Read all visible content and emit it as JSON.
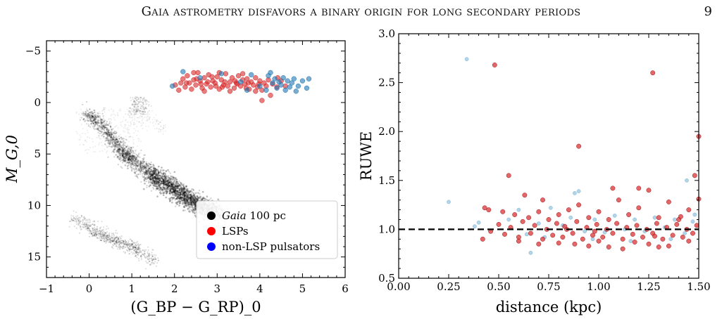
{
  "header": {
    "running_title": "Gaia astrometry disfavors a binary origin for long secondary periods",
    "page_number": "9"
  },
  "colors": {
    "gaia": "#000000",
    "lsp": "#d62728",
    "lsp_fill": "#e8474b",
    "pulsator": "#1f77b4",
    "pulsator_light": "#9ecae1",
    "legend_pulsator": "#0000ff",
    "legend_lsp": "#ff0000"
  },
  "chart_data": [
    {
      "type": "scatter",
      "title": "",
      "xlabel": "(G_BP − G_RP)_0",
      "ylabel": "M_G,0",
      "xlim": [
        -1,
        6
      ],
      "ylim": [
        17,
        -6
      ],
      "y_inverted": true,
      "xticks": [
        "−1",
        "0",
        "1",
        "2",
        "3",
        "4",
        "5",
        "6"
      ],
      "yticks": [
        "−5",
        "0",
        "5",
        "10",
        "15"
      ],
      "legend_position": "lower-right",
      "legend": [
        {
          "italic": "Gaia",
          "text": " 100 pc",
          "color": "#000000"
        },
        {
          "italic": "",
          "text": "LSPs",
          "color": "#ff0000"
        },
        {
          "italic": "",
          "text": "non-LSP pulsators",
          "color": "#0000ff"
        }
      ],
      "series": [
        {
          "name": "LSPs",
          "color": "#d62728",
          "points": [
            [
              2.02,
              -1.7
            ],
            [
              2.1,
              -1.2
            ],
            [
              2.2,
              -2.3
            ],
            [
              2.25,
              -1.5
            ],
            [
              2.3,
              -2.6
            ],
            [
              2.35,
              -1.9
            ],
            [
              2.4,
              -1.3
            ],
            [
              2.45,
              -2.2
            ],
            [
              2.5,
              -1.7
            ],
            [
              2.55,
              -2.9
            ],
            [
              2.6,
              -2.1
            ],
            [
              2.65,
              -1.4
            ],
            [
              2.7,
              -2.4
            ],
            [
              2.75,
              -1.8
            ],
            [
              2.8,
              -2.7
            ],
            [
              2.85,
              -1.5
            ],
            [
              2.9,
              -2.1
            ],
            [
              2.95,
              -1.9
            ],
            [
              3.0,
              -2.5
            ],
            [
              3.05,
              -1.3
            ],
            [
              3.1,
              -2.2
            ],
            [
              3.15,
              -1.7
            ],
            [
              3.2,
              -2.8
            ],
            [
              3.25,
              -1.6
            ],
            [
              3.3,
              -2.0
            ],
            [
              3.35,
              -2.4
            ],
            [
              3.4,
              -1.4
            ],
            [
              3.45,
              -1.9
            ],
            [
              3.5,
              -2.6
            ],
            [
              3.55,
              -1.6
            ],
            [
              3.6,
              -2.2
            ],
            [
              3.65,
              -1.8
            ],
            [
              3.7,
              -2.3
            ],
            [
              3.75,
              -1.3
            ],
            [
              3.8,
              -2.0
            ],
            [
              3.85,
              -1.7
            ],
            [
              3.9,
              -2.4
            ],
            [
              3.95,
              -1.5
            ],
            [
              4.0,
              -2.1
            ],
            [
              4.05,
              -1.2
            ],
            [
              4.1,
              -1.9
            ],
            [
              4.15,
              -1.6
            ],
            [
              4.2,
              -2.2
            ],
            [
              4.3,
              -1.8
            ],
            [
              4.4,
              -1.5
            ],
            [
              4.5,
              -2.1
            ],
            [
              4.6,
              -1.6
            ],
            [
              2.45,
              -2.9
            ],
            [
              2.7,
              -1.1
            ],
            [
              3.05,
              -2.9
            ],
            [
              3.3,
              -1.1
            ],
            [
              3.6,
              -2.8
            ],
            [
              3.9,
              -1.1
            ],
            [
              4.25,
              -0.7
            ],
            [
              4.05,
              -0.2
            ],
            [
              2.28,
              -1.9
            ],
            [
              2.62,
              -1.8
            ],
            [
              2.97,
              -1.6
            ],
            [
              3.18,
              -2.0
            ],
            [
              3.47,
              -1.8
            ],
            [
              3.73,
              -1.9
            ],
            [
              4.42,
              -2.4
            ],
            [
              2.15,
              -1.9
            ],
            [
              2.78,
              -2.0
            ],
            [
              3.12,
              -1.5
            ],
            [
              3.42,
              -2.1
            ],
            [
              3.68,
              -1.4
            ],
            [
              3.98,
              -1.8
            ],
            [
              2.52,
              -2.3
            ],
            [
              2.88,
              -2.5
            ]
          ]
        },
        {
          "name": "non-LSP pulsators",
          "color": "#1f77b4",
          "points": [
            [
              1.95,
              -1.6
            ],
            [
              2.2,
              -3.0
            ],
            [
              2.6,
              -2.4
            ],
            [
              3.1,
              -2.8
            ],
            [
              3.55,
              -2.0
            ],
            [
              3.8,
              -2.7
            ],
            [
              4.0,
              -1.6
            ],
            [
              4.15,
              -1.2
            ],
            [
              4.2,
              -2.6
            ],
            [
              4.3,
              -1.9
            ],
            [
              4.35,
              -2.3
            ],
            [
              4.4,
              -1.4
            ],
            [
              4.45,
              -2.0
            ],
            [
              4.5,
              -1.7
            ],
            [
              4.55,
              -2.4
            ],
            [
              4.6,
              -1.2
            ],
            [
              4.65,
              -2.1
            ],
            [
              4.7,
              -1.5
            ],
            [
              4.75,
              -1.9
            ],
            [
              4.8,
              -2.3
            ],
            [
              4.9,
              -1.6
            ],
            [
              5.0,
              -2.1
            ],
            [
              5.1,
              -1.4
            ],
            [
              5.15,
              -2.3
            ],
            [
              3.7,
              -1.2
            ],
            [
              4.25,
              -2.9
            ],
            [
              4.85,
              -1.1
            ]
          ]
        }
      ]
    },
    {
      "type": "scatter",
      "title": "",
      "xlabel": "distance (kpc)",
      "ylabel": "RUWE",
      "xlim": [
        0.0,
        1.5
      ],
      "ylim": [
        0.5,
        3.0
      ],
      "xticks": [
        "0.00",
        "0.25",
        "0.50",
        "0.75",
        "1.00",
        "1.25",
        "1.50"
      ],
      "yticks": [
        "0.5",
        "1.0",
        "1.5",
        "2.0",
        "2.5",
        "3.0"
      ],
      "reference_line": {
        "y": 1.0,
        "style": "dashed"
      },
      "series": [
        {
          "name": "LSPs",
          "color": "#d62728",
          "points": [
            [
              0.48,
              2.68
            ],
            [
              1.27,
              2.6
            ],
            [
              0.9,
              1.85
            ],
            [
              1.5,
              1.95
            ],
            [
              0.55,
              1.55
            ],
            [
              1.48,
              1.55
            ],
            [
              1.5,
              1.31
            ],
            [
              0.63,
              1.35
            ],
            [
              1.07,
              1.42
            ],
            [
              1.2,
              1.42
            ],
            [
              1.25,
              1.4
            ],
            [
              0.72,
              1.3
            ],
            [
              0.43,
              1.22
            ],
            [
              0.45,
              1.2
            ],
            [
              0.52,
              1.18
            ],
            [
              0.58,
              1.15
            ],
            [
              0.65,
              1.12
            ],
            [
              0.7,
              1.18
            ],
            [
              0.75,
              1.1
            ],
            [
              0.8,
              1.15
            ],
            [
              0.85,
              1.2
            ],
            [
              0.9,
              1.25
            ],
            [
              0.95,
              1.12
            ],
            [
              1.0,
              1.18
            ],
            [
              1.05,
              1.1
            ],
            [
              1.1,
              1.3
            ],
            [
              1.15,
              1.15
            ],
            [
              1.2,
              1.22
            ],
            [
              1.3,
              1.12
            ],
            [
              1.35,
              1.28
            ],
            [
              1.4,
              1.1
            ],
            [
              1.45,
              1.2
            ],
            [
              0.42,
              0.9
            ],
            [
              0.46,
              0.98
            ],
            [
              0.5,
              1.05
            ],
            [
              0.53,
              0.95
            ],
            [
              0.56,
              1.02
            ],
            [
              0.6,
              0.92
            ],
            [
              0.62,
              1.08
            ],
            [
              0.66,
              0.96
            ],
            [
              0.68,
              1.04
            ],
            [
              0.72,
              0.9
            ],
            [
              0.74,
              1.0
            ],
            [
              0.77,
              0.94
            ],
            [
              0.79,
              1.06
            ],
            [
              0.82,
              0.92
            ],
            [
              0.84,
              1.0
            ],
            [
              0.87,
              0.96
            ],
            [
              0.89,
              1.08
            ],
            [
              0.92,
              0.9
            ],
            [
              0.94,
              1.02
            ],
            [
              0.97,
              0.94
            ],
            [
              0.99,
              1.05
            ],
            [
              1.02,
              0.92
            ],
            [
              1.04,
              1.0
            ],
            [
              1.07,
              0.96
            ],
            [
              1.09,
              1.06
            ],
            [
              1.12,
              0.9
            ],
            [
              1.14,
              1.02
            ],
            [
              1.17,
              0.95
            ],
            [
              1.19,
              1.04
            ],
            [
              1.22,
              0.92
            ],
            [
              1.24,
              1.0
            ],
            [
              1.27,
              0.96
            ],
            [
              1.29,
              1.06
            ],
            [
              1.32,
              0.9
            ],
            [
              1.34,
              1.02
            ],
            [
              1.37,
              0.94
            ],
            [
              1.39,
              1.05
            ],
            [
              1.42,
              0.92
            ],
            [
              1.44,
              1.0
            ],
            [
              1.47,
              0.96
            ],
            [
              1.49,
              1.04
            ],
            [
              0.88,
              0.85
            ],
            [
              1.05,
              0.82
            ],
            [
              1.25,
              0.85
            ],
            [
              0.6,
              0.88
            ],
            [
              0.8,
              0.86
            ],
            [
              1.12,
              0.8
            ],
            [
              1.35,
              0.83
            ],
            [
              1.0,
              0.88
            ],
            [
              0.7,
              0.85
            ],
            [
              1.45,
              0.88
            ],
            [
              0.95,
              0.83
            ],
            [
              1.18,
              0.87
            ],
            [
              1.3,
              0.82
            ],
            [
              0.98,
              0.98
            ],
            [
              1.28,
              0.93
            ],
            [
              1.41,
              1.13
            ],
            [
              0.83,
              1.03
            ]
          ]
        },
        {
          "name": "non-LSP pulsators",
          "color": "#9ecae1",
          "points": [
            [
              0.34,
              2.74
            ],
            [
              0.25,
              1.28
            ],
            [
              0.88,
              1.37
            ],
            [
              0.9,
              1.39
            ],
            [
              1.44,
              1.5
            ],
            [
              0.38,
              1.03
            ],
            [
              0.4,
              1.07
            ],
            [
              0.55,
              1.1
            ],
            [
              0.6,
              1.2
            ],
            [
              0.7,
              1.06
            ],
            [
              0.76,
              1.22
            ],
            [
              0.82,
              1.04
            ],
            [
              0.86,
              1.12
            ],
            [
              0.93,
              0.98
            ],
            [
              0.98,
              1.1
            ],
            [
              1.03,
              0.97
            ],
            [
              1.08,
              1.14
            ],
            [
              1.13,
              1.0
            ],
            [
              1.18,
              1.1
            ],
            [
              1.23,
              0.98
            ],
            [
              1.28,
              1.12
            ],
            [
              1.33,
              1.02
            ],
            [
              1.38,
              1.1
            ],
            [
              1.43,
              0.96
            ],
            [
              1.47,
              1.08
            ],
            [
              0.64,
              0.95
            ],
            [
              0.73,
              0.92
            ],
            [
              0.97,
              0.9
            ],
            [
              1.16,
              0.88
            ],
            [
              1.36,
              0.9
            ],
            [
              0.66,
              0.76
            ],
            [
              1.48,
              1.15
            ]
          ]
        }
      ]
    }
  ]
}
